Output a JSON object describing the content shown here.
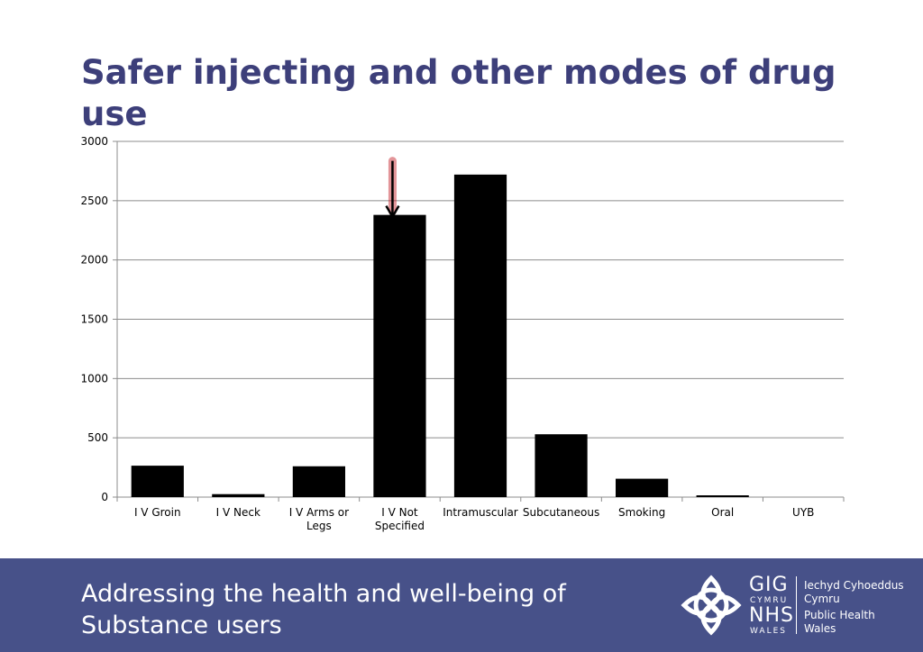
{
  "slide": {
    "title": "Safer injecting and other modes of drug use"
  },
  "chart_data": {
    "type": "bar",
    "title": "",
    "xlabel": "",
    "ylabel": "",
    "categories": [
      "I V Groin",
      "I V Neck",
      "I V Arms or Legs",
      "I V Not Specified",
      "Intramuscular",
      "Subcutaneous",
      "Smoking",
      "Oral",
      "UYB"
    ],
    "category_labels": [
      [
        "I V Groin"
      ],
      [
        "I V Neck"
      ],
      [
        "I V Arms or",
        "Legs"
      ],
      [
        "I V Not",
        "Specified"
      ],
      [
        "Intramuscular"
      ],
      [
        "Subcutaneous"
      ],
      [
        "Smoking"
      ],
      [
        "Oral"
      ],
      [
        "UYB"
      ]
    ],
    "values": [
      265,
      25,
      260,
      2380,
      2720,
      530,
      155,
      15,
      0
    ],
    "ylim": [
      0,
      3000
    ],
    "yticks": [
      0,
      500,
      1000,
      1500,
      2000,
      2500,
      3000
    ],
    "grid": true,
    "legend": "none",
    "bar_color": "#000000",
    "grid_color": "#8c8c8c",
    "annotation": {
      "type": "arrow",
      "target_category": "I V Not Specified",
      "color": "#c0141c"
    }
  },
  "footer": {
    "text": "Addressing the health and well-being of\nSubstance users",
    "background": "#475189"
  },
  "logo": {
    "gig": "GIG",
    "cymru": "CYMRU",
    "nhs": "NHS",
    "wales": "WALES",
    "org_line1": "Iechyd Cyhoeddus",
    "org_line2": "Cymru",
    "org_line3": "Public Health",
    "org_line4": "Wales"
  }
}
